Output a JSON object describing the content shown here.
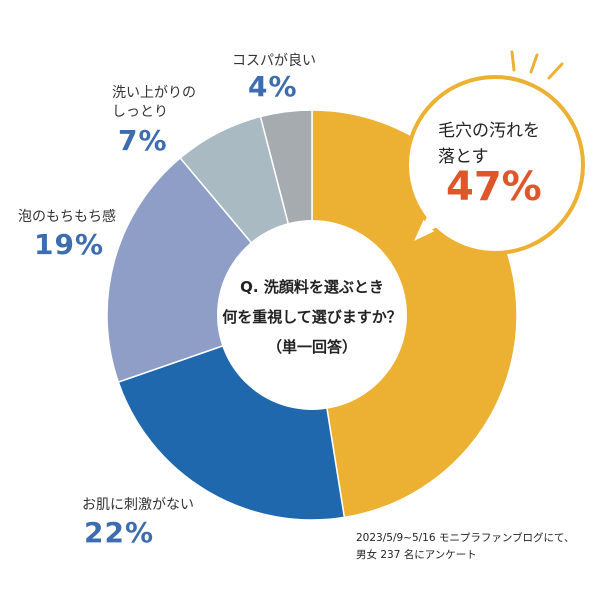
{
  "chart_data": {
    "type": "pie",
    "donut": true,
    "title": "Q. 洗顔料を選ぶとき 何を重視して選びますか？",
    "subtitle": "（単一回答）",
    "categories": [
      "毛穴の汚れを落とす",
      "お肌に刺激がない",
      "泡のもちもち感",
      "洗い上がりのしっとり",
      "コスパが良い"
    ],
    "values": [
      47,
      22,
      19,
      7,
      4
    ],
    "value_labels": [
      "47%",
      "22%",
      "19%",
      "7%",
      "4%"
    ],
    "colors": [
      "#ecb032",
      "#1f68ad",
      "#8e9ec7",
      "#aabac2",
      "#a6abaf"
    ],
    "label_lines": [
      [
        "毛穴の汚れを",
        "落とす"
      ],
      [
        "お肌に刺激がない"
      ],
      [
        "泡のもちもち感"
      ],
      [
        "洗い上がりの",
        "しっとり"
      ],
      [
        "コスパが良い"
      ]
    ],
    "title_lines": [
      "Q. 洗顔料を選ぶとき",
      "何を重視して選びますか？"
    ]
  },
  "note": [
    "2023/5/9~5/16 モニプラファンブログにて、",
    "男女 237 名にアンケート"
  ],
  "colors": {
    "percent_text": "#3c6db0",
    "highlight_percent": "#e0562b",
    "callout_border": "#ecb032"
  }
}
